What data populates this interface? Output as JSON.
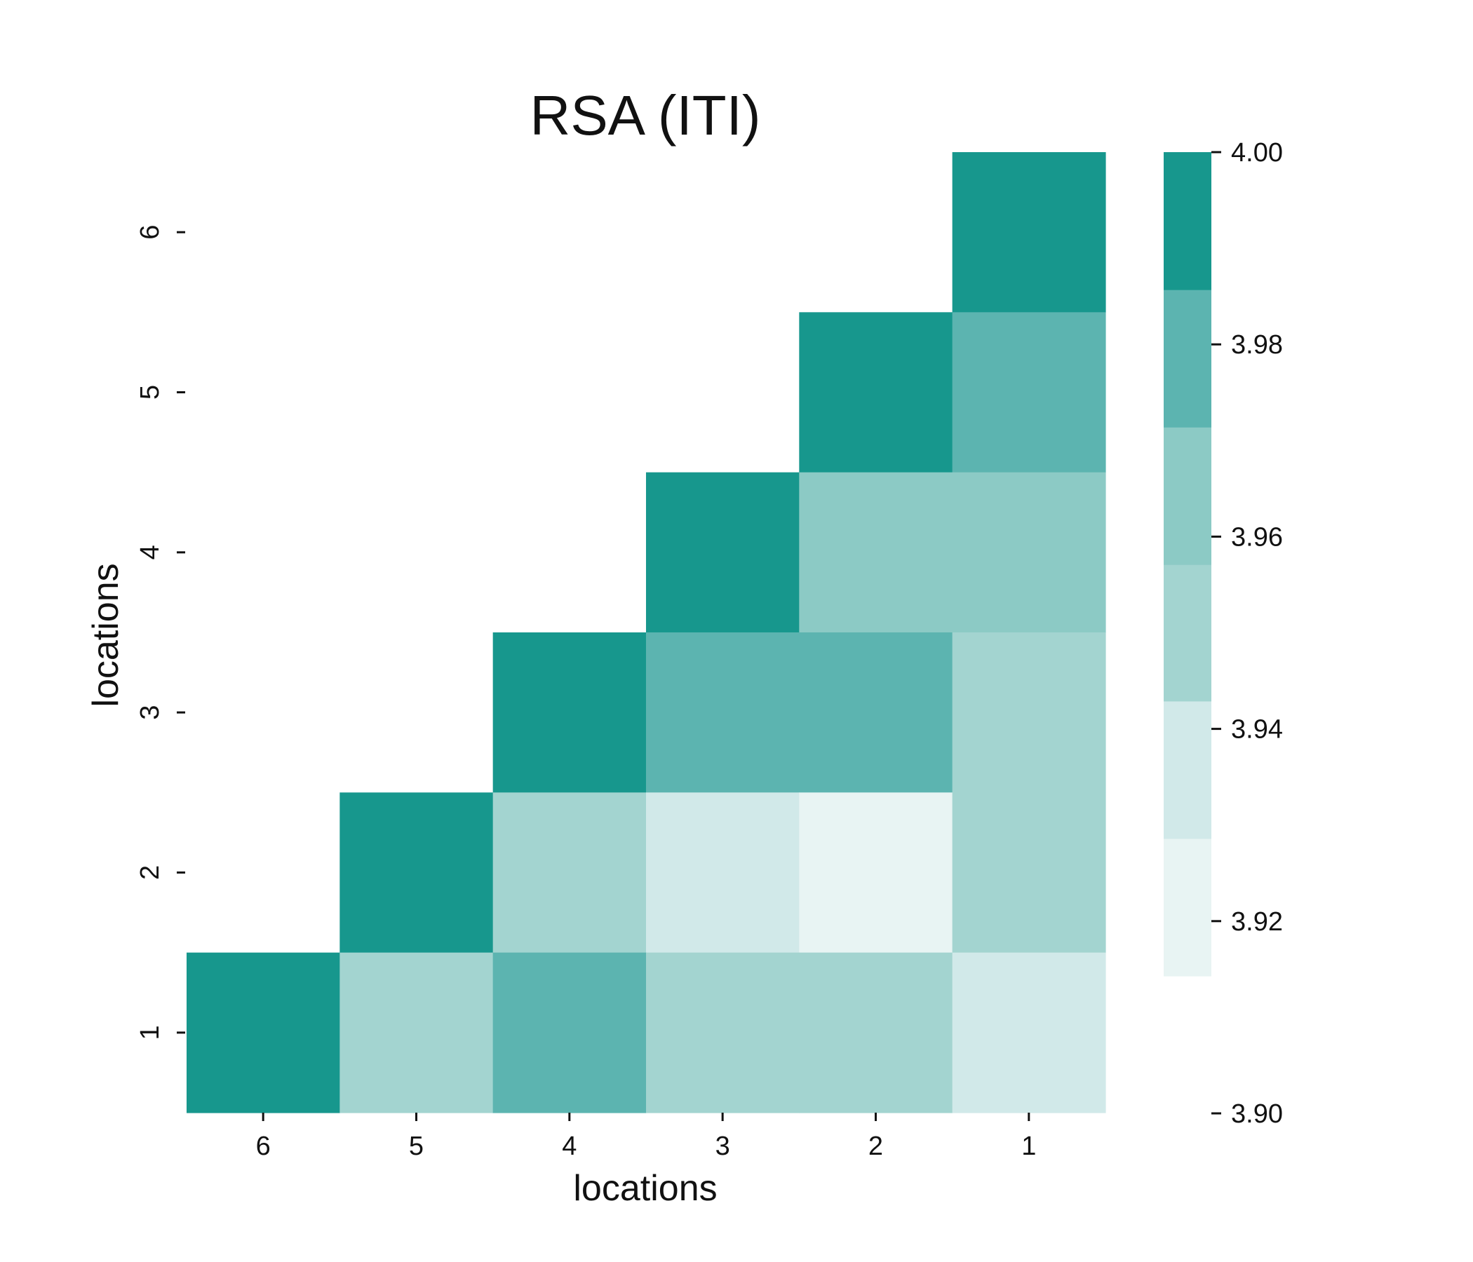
{
  "chart_data": {
    "type": "heatmap",
    "title": "RSA (ITI)",
    "xlabel": "locations",
    "ylabel": "locations",
    "x_categories": [
      "6",
      "5",
      "4",
      "3",
      "2",
      "1"
    ],
    "y_categories": [
      "6",
      "5",
      "4",
      "3",
      "2",
      "1"
    ],
    "mask": "upper-left triangle (cells left of the anti-diagonal are blank)",
    "cells": [
      {
        "x": "1",
        "y": "6",
        "value": 4.0
      },
      {
        "x": "2",
        "y": "5",
        "value": 4.0
      },
      {
        "x": "1",
        "y": "5",
        "value": 3.98
      },
      {
        "x": "3",
        "y": "4",
        "value": 4.0
      },
      {
        "x": "2",
        "y": "4",
        "value": 3.965
      },
      {
        "x": "1",
        "y": "4",
        "value": 3.965
      },
      {
        "x": "4",
        "y": "3",
        "value": 4.0
      },
      {
        "x": "3",
        "y": "3",
        "value": 3.98
      },
      {
        "x": "2",
        "y": "3",
        "value": 3.98
      },
      {
        "x": "1",
        "y": "3",
        "value": 3.95
      },
      {
        "x": "5",
        "y": "2",
        "value": 4.0
      },
      {
        "x": "4",
        "y": "2",
        "value": 3.95
      },
      {
        "x": "3",
        "y": "2",
        "value": 3.935
      },
      {
        "x": "2",
        "y": "2",
        "value": 3.92
      },
      {
        "x": "1",
        "y": "2",
        "value": 3.95
      },
      {
        "x": "6",
        "y": "1",
        "value": 4.0
      },
      {
        "x": "5",
        "y": "1",
        "value": 3.95
      },
      {
        "x": "4",
        "y": "1",
        "value": 3.98
      },
      {
        "x": "3",
        "y": "1",
        "value": 3.95
      },
      {
        "x": "2",
        "y": "1",
        "value": 3.95
      },
      {
        "x": "1",
        "y": "1",
        "value": 3.935
      }
    ],
    "colorbar": {
      "range": [
        3.9,
        4.0
      ],
      "ticks": [
        "4.00",
        "3.98",
        "3.96",
        "3.94",
        "3.92",
        "3.90"
      ],
      "tick_values": [
        4.0,
        3.98,
        3.96,
        3.94,
        3.92,
        3.9
      ],
      "bins": [
        {
          "from": 3.9143,
          "to": 3.9286,
          "color": "#e8f4f3"
        },
        {
          "from": 3.9286,
          "to": 3.9429,
          "color": "#d1e9e9"
        },
        {
          "from": 3.9429,
          "to": 3.9571,
          "color": "#a3d4d0"
        },
        {
          "from": 3.9571,
          "to": 3.9714,
          "color": "#8ccac5"
        },
        {
          "from": 3.9714,
          "to": 3.9857,
          "color": "#5cb4b0"
        },
        {
          "from": 3.9857,
          "to": 4.0,
          "color": "#17978d"
        }
      ]
    },
    "grid": false
  }
}
